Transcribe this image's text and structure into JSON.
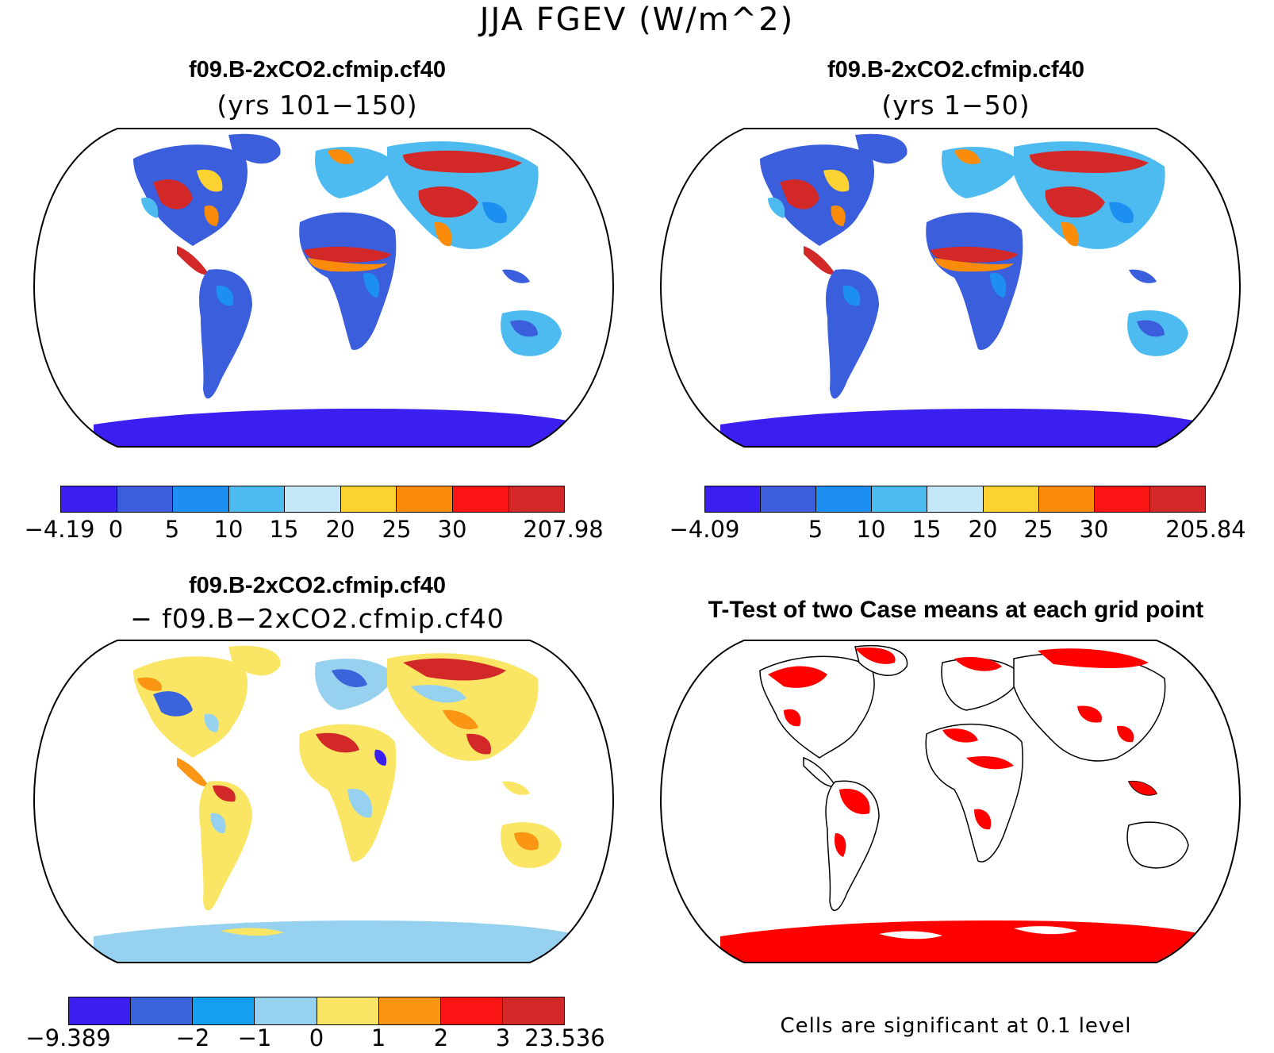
{
  "figure": {
    "title": "JJA FGEV (W/m^2)"
  },
  "panels": [
    {
      "title": "f09.B-2xCO2.cfmip.cf40",
      "subtitle": "(yrs 101−150)",
      "colorbar": {
        "colors": [
          "#3a1ff0",
          "#3a5edc",
          "#1c8ff0",
          "#4dbbf0",
          "#c4e8f7",
          "#fcd232",
          "#fa8c0a",
          "#fa1414",
          "#d22828"
        ],
        "tick_labels": [
          "−4.19",
          "0",
          "5",
          "10",
          "15",
          "20",
          "25",
          "30",
          "207.98"
        ]
      }
    },
    {
      "title": "f09.B-2xCO2.cfmip.cf40",
      "subtitle": "(yrs 1−50)",
      "colorbar": {
        "colors": [
          "#3a1ff0",
          "#3a5edc",
          "#1c8ff0",
          "#4dbbf0",
          "#c4e8f7",
          "#fcd232",
          "#fa8c0a",
          "#fa1414",
          "#d22828"
        ],
        "tick_labels": [
          "−4.09",
          "5",
          "10",
          "15",
          "20",
          "25",
          "30",
          "205.84"
        ]
      }
    },
    {
      "title": "f09.B-2xCO2.cfmip.cf40",
      "subtitle": "− f09.B−2xCO2.cfmip.cf40",
      "colorbar": {
        "colors": [
          "#3a1ff0",
          "#3a64dc",
          "#14a0f0",
          "#96d2f0",
          "#fae664",
          "#fa9614",
          "#fa1414",
          "#d22828"
        ],
        "tick_labels": [
          "−9.389",
          "−2",
          "−1",
          "0",
          "1",
          "2",
          "3",
          "23.536"
        ]
      }
    },
    {
      "title": "T-Test of two Case means at each grid point",
      "note": "Cells are significant at 0.1 level",
      "significance_color": "#ff0000"
    }
  ]
}
